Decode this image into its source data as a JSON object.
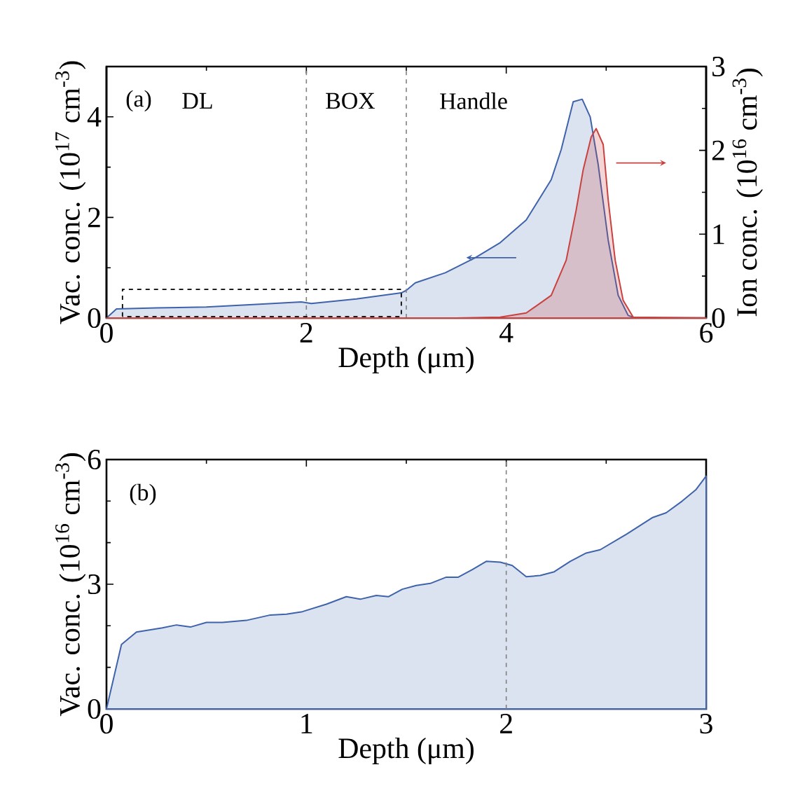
{
  "chart_data": [
    {
      "type": "area",
      "xlabel": "Depth (μm)",
      "ylabel": "Vac. conc. (10$^{17}$ cm$^{-3}$)",
      "y2label": "Ion conc. (10$^{16}$ cm$^{-3}$)",
      "xlim": [
        0,
        6
      ],
      "xticks": [
        0,
        2,
        4,
        6
      ],
      "ylim": [
        0,
        5
      ],
      "yticks": [
        0,
        2,
        4
      ],
      "y2lim": [
        0,
        3
      ],
      "y2ticks": [
        0,
        1,
        2,
        3
      ],
      "annotations": [
        "(a)",
        "DL",
        "BOX",
        "Handle"
      ],
      "ref_lines": [
        {
          "axis": "x",
          "value": 2,
          "color": "#808080",
          "line_style": "dashed"
        },
        {
          "axis": "x",
          "value": 3,
          "color": "#808080",
          "line_style": "dashed"
        }
      ],
      "series": [
        {
          "color": "#3f63ab",
          "x": [
            0,
            0.1,
            0.5,
            1,
            1.5,
            1.95,
            2.05,
            2.5,
            2.95,
            3.0,
            3.09,
            3.39,
            3.69,
            3.94,
            4.2,
            4.45,
            4.55,
            4.67,
            4.76,
            4.84,
            4.92,
            5.02,
            5.12,
            5.22,
            5.3,
            6
          ],
          "values": [
            0,
            0.18,
            0.2,
            0.22,
            0.27,
            0.32,
            0.29,
            0.38,
            0.5,
            0.55,
            0.7,
            0.9,
            1.2,
            1.5,
            1.95,
            2.75,
            3.35,
            4.3,
            4.35,
            4.0,
            3.05,
            1.55,
            0.45,
            0.05,
            0,
            0
          ]
        },
        {
          "color": "#c8413f",
          "axis": "y2",
          "x": [
            0,
            3.5,
            3.94,
            4.2,
            4.45,
            4.6,
            4.7,
            4.77,
            4.85,
            4.9,
            4.97,
            5.02,
            5.09,
            5.17,
            5.27,
            6
          ],
          "values": [
            0,
            0,
            0.01,
            0.06,
            0.27,
            0.69,
            1.29,
            1.77,
            2.16,
            2.26,
            2.07,
            1.41,
            0.69,
            0.21,
            0.01,
            0
          ]
        }
      ]
    },
    {
      "type": "area",
      "xlabel": "Depth (μm)",
      "ylabel": "Vac. conc. (10$^{16}$ cm$^{-3}$)",
      "xlim": [
        0,
        3
      ],
      "xticks": [
        0,
        1,
        2,
        3
      ],
      "ylim": [
        0,
        6
      ],
      "yticks": [
        0,
        3,
        6
      ],
      "annotations": [
        "(b)"
      ],
      "ref_lines": [
        {
          "axis": "x",
          "value": 2,
          "color": "#808080",
          "line_style": "dashed"
        }
      ],
      "series": [
        {
          "color": "#3f63ab",
          "x": [
            0,
            0.075,
            0.15,
            0.28,
            0.35,
            0.42,
            0.5,
            0.58,
            0.7,
            0.82,
            0.9,
            0.98,
            1.1,
            1.2,
            1.27,
            1.35,
            1.41,
            1.48,
            1.55,
            1.62,
            1.7,
            1.76,
            1.83,
            1.9,
            1.97,
            2.03,
            2.1,
            2.17,
            2.24,
            2.32,
            2.4,
            2.47,
            2.6,
            2.73,
            2.8,
            2.88,
            2.95,
            3.0
          ],
          "values": [
            0,
            1.55,
            1.85,
            1.95,
            2.02,
            1.97,
            2.08,
            2.08,
            2.13,
            2.26,
            2.28,
            2.34,
            2.52,
            2.7,
            2.64,
            2.73,
            2.7,
            2.88,
            2.97,
            3.02,
            3.17,
            3.17,
            3.35,
            3.55,
            3.53,
            3.45,
            3.18,
            3.21,
            3.3,
            3.55,
            3.75,
            3.83,
            4.2,
            4.6,
            4.72,
            5.0,
            5.28,
            5.6
          ]
        }
      ]
    }
  ]
}
